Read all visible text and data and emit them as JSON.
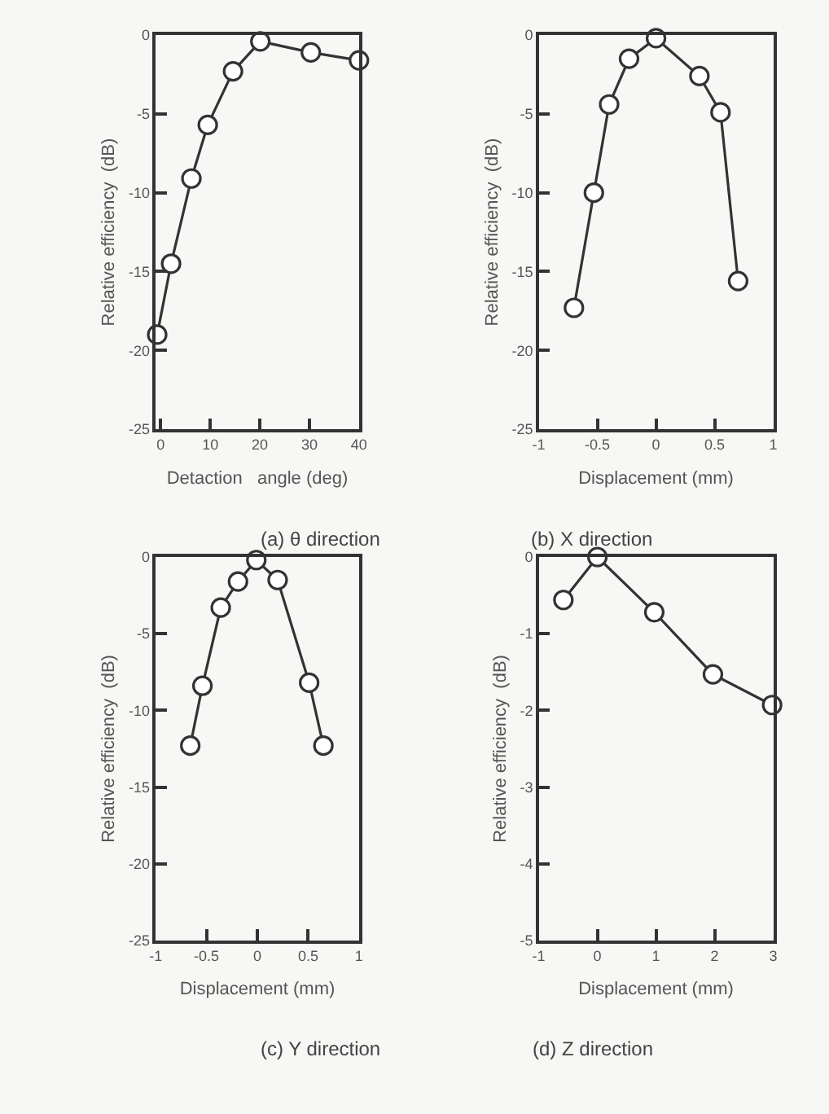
{
  "chart_data": [
    {
      "type": "line",
      "title": "(a) θ direction",
      "xlabel": "Detaction   angle (deg)",
      "ylabel": "Relative efficiency  (dB)",
      "x": [
        -0.7,
        2.1,
        6.2,
        9.5,
        14.6,
        20.1,
        30.3,
        40
      ],
      "series": [
        {
          "color": "#333333",
          "values": [
            -19,
            -14.5,
            -9.1,
            -5.7,
            -2.3,
            -0.4,
            -1.1,
            -1.6
          ]
        }
      ],
      "xlim": [
        -1,
        40
      ],
      "xticks": [
        0,
        10,
        20,
        30,
        40
      ],
      "ylim": [
        -25,
        0
      ],
      "yticks": [
        -25,
        -20,
        -15,
        -10,
        -5,
        0
      ],
      "marker": "circle",
      "grid": false
    },
    {
      "type": "line",
      "title": "(b) X direction",
      "xlabel": "Displacement (mm)",
      "ylabel": "Relative efficiency  (dB)",
      "x": [
        -0.7,
        -0.53,
        -0.4,
        -0.23,
        0,
        0.37,
        0.55,
        0.7
      ],
      "series": [
        {
          "color": "#333333",
          "values": [
            -17.3,
            -10,
            -4.4,
            -1.5,
            -0.2,
            -2.6,
            -4.9,
            -15.6
          ]
        }
      ],
      "xlim": [
        -1,
        1
      ],
      "xticks": [
        -1,
        -0.5,
        0,
        0.5,
        1
      ],
      "ylim": [
        -25,
        0
      ],
      "yticks": [
        -25,
        -20,
        -15,
        -10,
        -5,
        0
      ],
      "marker": "circle",
      "grid": false
    },
    {
      "type": "line",
      "title": "(c) Y direction",
      "xlabel": "Displacement (mm)",
      "ylabel": "Relative efficiency  (dB)",
      "x": [
        -0.66,
        -0.54,
        -0.36,
        -0.19,
        -0.01,
        0.2,
        0.51,
        0.65
      ],
      "series": [
        {
          "color": "#333333",
          "values": [
            -12.3,
            -8.4,
            -3.3,
            -1.6,
            -0.2,
            -1.5,
            -8.2,
            -12.3
          ]
        }
      ],
      "xlim": [
        -1,
        1
      ],
      "xticks": [
        -1,
        -0.5,
        0,
        0.5,
        1
      ],
      "ylim": [
        -25,
        0
      ],
      "yticks": [
        -25,
        -20,
        -15,
        -10,
        -5,
        0
      ],
      "marker": "circle",
      "grid": false
    },
    {
      "type": "line",
      "title": "(d) Z direction",
      "xlabel": "Displacement (mm)",
      "ylabel": "Relative efficiency  (dB)",
      "x": [
        -0.58,
        0,
        0.97,
        1.97,
        2.98
      ],
      "series": [
        {
          "color": "#333333",
          "values": [
            -0.56,
            0,
            -0.72,
            -1.53,
            -1.93
          ]
        }
      ],
      "xlim": [
        -1,
        3
      ],
      "xticks": [
        -1,
        0,
        1,
        2,
        3
      ],
      "ylim": [
        -5,
        0
      ],
      "yticks": [
        -5,
        -4,
        -3,
        -2,
        -1,
        0
      ],
      "marker": "circle",
      "grid": false
    }
  ]
}
